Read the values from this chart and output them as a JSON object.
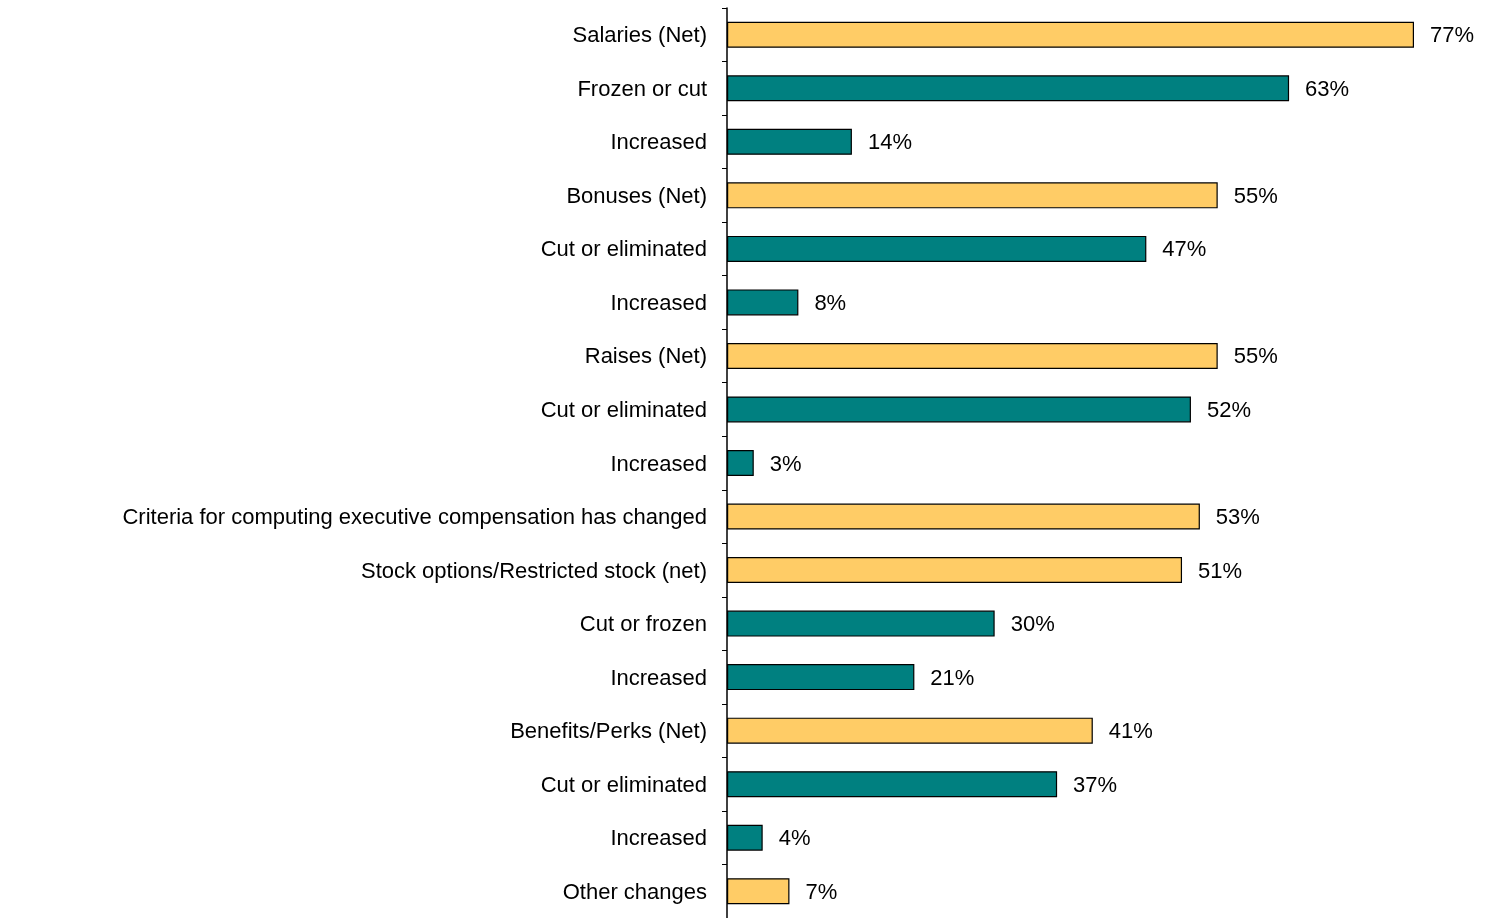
{
  "chart_data": {
    "type": "bar",
    "orientation": "horizontal",
    "categories": [
      "Salaries (Net)",
      "Frozen or cut",
      "Increased",
      "Bonuses (Net)",
      "Cut or eliminated",
      "Increased",
      "Raises (Net)",
      "Cut or eliminated",
      "Increased",
      "Criteria for computing executive compensation has changed",
      "Stock options/Restricted stock (net)",
      "Cut or frozen",
      "Increased",
      "Benefits/Perks (Net)",
      "Cut or eliminated",
      "Increased",
      "Other changes"
    ],
    "values": [
      77,
      63,
      14,
      55,
      47,
      8,
      55,
      52,
      3,
      53,
      51,
      30,
      21,
      41,
      37,
      4,
      7
    ],
    "value_labels": [
      "77%",
      "63%",
      "14%",
      "55%",
      "47%",
      "8%",
      "55%",
      "52%",
      "3%",
      "53%",
      "51%",
      "30%",
      "21%",
      "41%",
      "37%",
      "4%",
      "7%"
    ],
    "colors": [
      "#ffcc66",
      "#008080",
      "#008080",
      "#ffcc66",
      "#008080",
      "#008080",
      "#ffcc66",
      "#008080",
      "#008080",
      "#ffcc66",
      "#ffcc66",
      "#008080",
      "#008080",
      "#ffcc66",
      "#008080",
      "#008080",
      "#ffcc66"
    ]
  }
}
